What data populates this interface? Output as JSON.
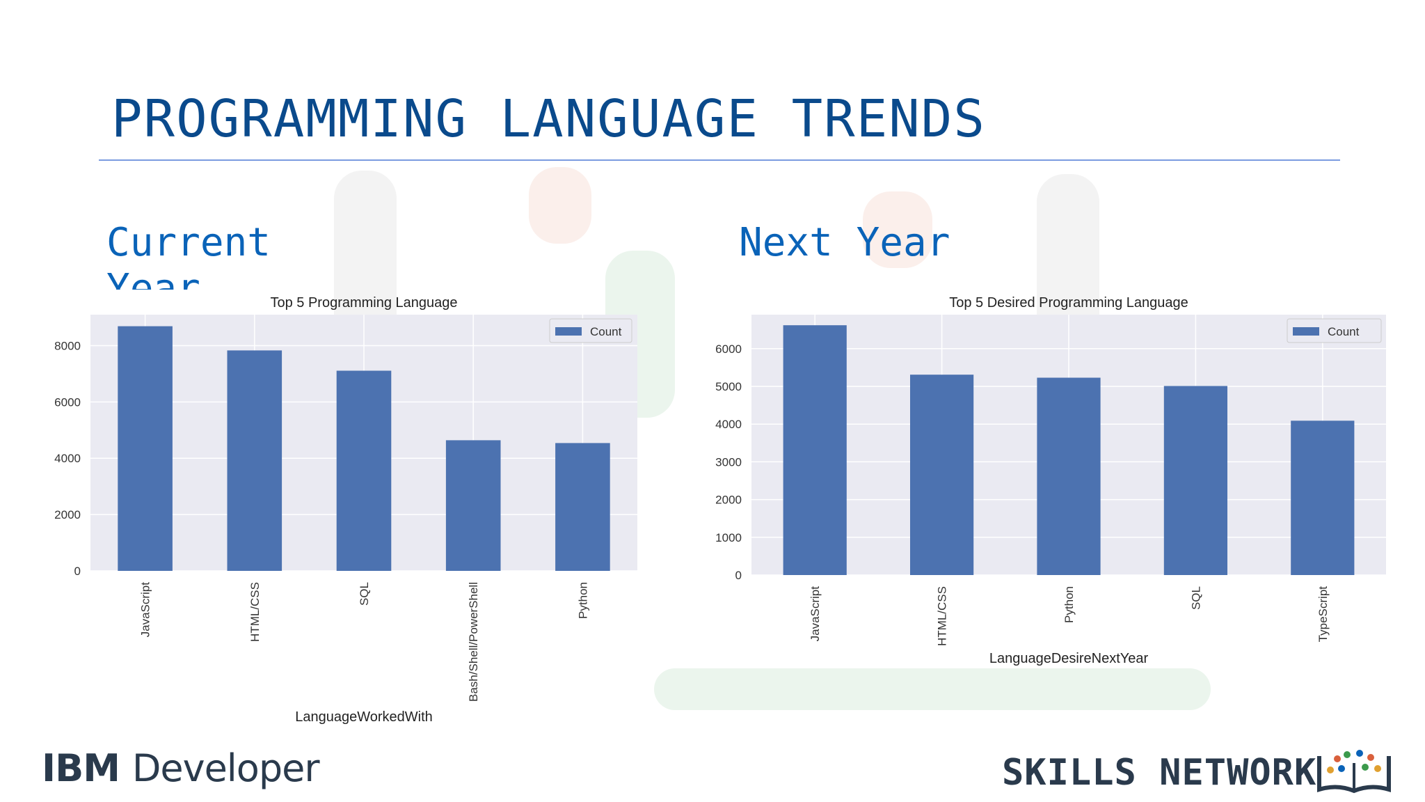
{
  "slide": {
    "title": "PROGRAMMING LANGUAGE TRENDS",
    "left_label": "Current Year",
    "right_label": "Next Year"
  },
  "footer": {
    "brand_left_strong": "IBM",
    "brand_left_light": "Developer",
    "brand_right": "SKILLS NETWORK"
  },
  "colors": {
    "title": "#0a4a8c",
    "bar": "#4c72b0",
    "plot_bg": "#eaeaf2"
  },
  "chart_data": [
    {
      "type": "bar",
      "title": "Top 5 Programming Language",
      "categories": [
        "JavaScript",
        "HTML/CSS",
        "SQL",
        "Bash/Shell/PowerShell",
        "Python"
      ],
      "series": [
        {
          "name": "Count",
          "values": [
            8690,
            7830,
            7110,
            4640,
            4540
          ]
        }
      ],
      "xlabel": "LanguageWorkedWith",
      "ylabel": "",
      "ylim": [
        0,
        9100
      ],
      "yticks": [
        0,
        2000,
        4000,
        6000,
        8000
      ],
      "grid": true,
      "legend": "top-right"
    },
    {
      "type": "bar",
      "title": "Top 5 Desired Programming Language",
      "categories": [
        "JavaScript",
        "HTML/CSS",
        "Python",
        "SQL",
        "TypeScript"
      ],
      "series": [
        {
          "name": "Count",
          "values": [
            6620,
            5310,
            5230,
            5010,
            4090
          ]
        }
      ],
      "xlabel": "LanguageDesireNextYear",
      "ylabel": "",
      "ylim": [
        0,
        6900
      ],
      "yticks": [
        0,
        1000,
        2000,
        3000,
        4000,
        5000,
        6000
      ],
      "grid": true,
      "legend": "top-right"
    }
  ]
}
